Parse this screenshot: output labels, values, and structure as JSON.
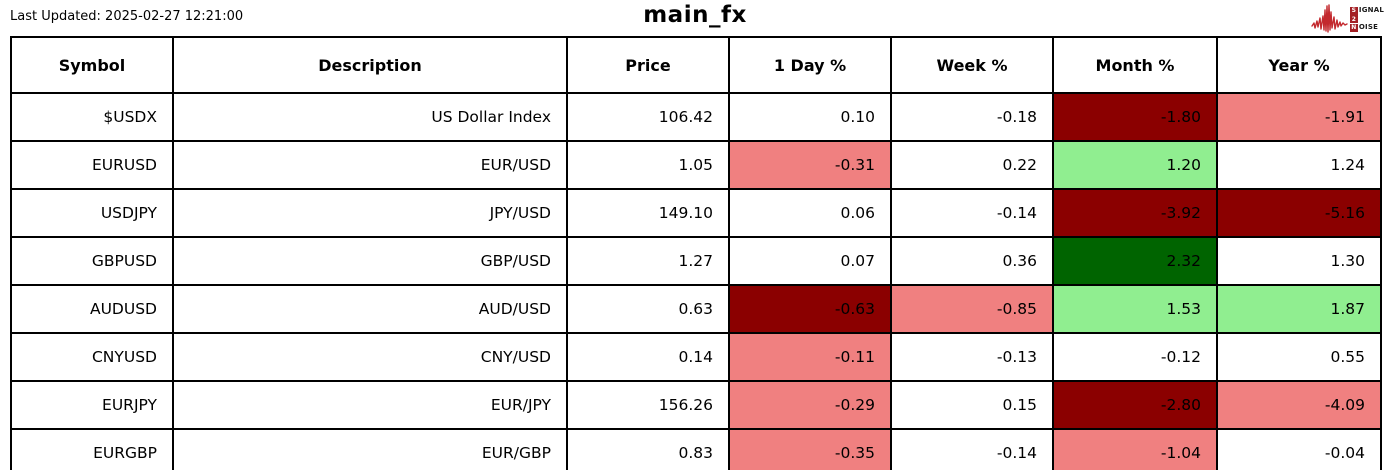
{
  "header": {
    "last_updated": "Last Updated: 2025-02-27 12:21:00",
    "title": "main_fx"
  },
  "logo": {
    "line1_boxed": "S",
    "line1_rest": "IGNAL",
    "line2_boxed": "2",
    "line2_rest": "",
    "line3_boxed": "N",
    "line3_rest": "OISE",
    "waveform_color": "#c3292e",
    "box_color": "#a31f24"
  },
  "table": {
    "headers": [
      "Symbol",
      "Description",
      "Price",
      "1 Day %",
      "Week %",
      "Month %",
      "Year %"
    ],
    "colors": {
      "white": "#ffffff",
      "darkred": "#8b0000",
      "lightcoral": "#f08080",
      "lightgreen": "#90ee90",
      "darkgreen": "#006400"
    },
    "rows": [
      {
        "symbol": "$USDX",
        "description": "US Dollar Index",
        "price": "106.42",
        "cells": [
          {
            "v": "0.10",
            "bg": "white"
          },
          {
            "v": "-0.18",
            "bg": "white"
          },
          {
            "v": "-1.80",
            "bg": "darkred"
          },
          {
            "v": "-1.91",
            "bg": "lightcoral"
          }
        ]
      },
      {
        "symbol": "EURUSD",
        "description": "EUR/USD",
        "price": "1.05",
        "cells": [
          {
            "v": "-0.31",
            "bg": "lightcoral"
          },
          {
            "v": "0.22",
            "bg": "white"
          },
          {
            "v": "1.20",
            "bg": "lightgreen"
          },
          {
            "v": "1.24",
            "bg": "white"
          }
        ]
      },
      {
        "symbol": "USDJPY",
        "description": "JPY/USD",
        "price": "149.10",
        "cells": [
          {
            "v": "0.06",
            "bg": "white"
          },
          {
            "v": "-0.14",
            "bg": "white"
          },
          {
            "v": "-3.92",
            "bg": "darkred"
          },
          {
            "v": "-5.16",
            "bg": "darkred"
          }
        ]
      },
      {
        "symbol": "GBPUSD",
        "description": "GBP/USD",
        "price": "1.27",
        "cells": [
          {
            "v": "0.07",
            "bg": "white"
          },
          {
            "v": "0.36",
            "bg": "white"
          },
          {
            "v": "2.32",
            "bg": "darkgreen"
          },
          {
            "v": "1.30",
            "bg": "white"
          }
        ]
      },
      {
        "symbol": "AUDUSD",
        "description": "AUD/USD",
        "price": "0.63",
        "cells": [
          {
            "v": "-0.63",
            "bg": "darkred"
          },
          {
            "v": "-0.85",
            "bg": "lightcoral"
          },
          {
            "v": "1.53",
            "bg": "lightgreen"
          },
          {
            "v": "1.87",
            "bg": "lightgreen"
          }
        ]
      },
      {
        "symbol": "CNYUSD",
        "description": "CNY/USD",
        "price": "0.14",
        "cells": [
          {
            "v": "-0.11",
            "bg": "lightcoral"
          },
          {
            "v": "-0.13",
            "bg": "white"
          },
          {
            "v": "-0.12",
            "bg": "white"
          },
          {
            "v": "0.55",
            "bg": "white"
          }
        ]
      },
      {
        "symbol": "EURJPY",
        "description": "EUR/JPY",
        "price": "156.26",
        "cells": [
          {
            "v": "-0.29",
            "bg": "lightcoral"
          },
          {
            "v": "0.15",
            "bg": "white"
          },
          {
            "v": "-2.80",
            "bg": "darkred"
          },
          {
            "v": "-4.09",
            "bg": "lightcoral"
          }
        ]
      },
      {
        "symbol": "EURGBP",
        "description": "EUR/GBP",
        "price": "0.83",
        "cells": [
          {
            "v": "-0.35",
            "bg": "lightcoral"
          },
          {
            "v": "-0.14",
            "bg": "white"
          },
          {
            "v": "-1.04",
            "bg": "lightcoral"
          },
          {
            "v": "-0.04",
            "bg": "white"
          }
        ]
      }
    ]
  },
  "chart_data": {
    "type": "table",
    "title": "main_fx",
    "last_updated": "2025-02-27 12:21:00",
    "columns": [
      "Symbol",
      "Description",
      "Price",
      "1 Day %",
      "Week %",
      "Month %",
      "Year %"
    ],
    "rows": [
      [
        "$USDX",
        "US Dollar Index",
        106.42,
        0.1,
        -0.18,
        -1.8,
        -1.91
      ],
      [
        "EURUSD",
        "EUR/USD",
        1.05,
        -0.31,
        0.22,
        1.2,
        1.24
      ],
      [
        "USDJPY",
        "JPY/USD",
        149.1,
        0.06,
        -0.14,
        -3.92,
        -5.16
      ],
      [
        "GBPUSD",
        "GBP/USD",
        1.27,
        0.07,
        0.36,
        2.32,
        1.3
      ],
      [
        "AUDUSD",
        "AUD/USD",
        0.63,
        -0.63,
        -0.85,
        1.53,
        1.87
      ],
      [
        "CNYUSD",
        "CNY/USD",
        0.14,
        -0.11,
        -0.13,
        -0.12,
        0.55
      ],
      [
        "EURJPY",
        "EUR/JPY",
        156.26,
        -0.29,
        0.15,
        -2.8,
        -4.09
      ],
      [
        "EURGBP",
        "EUR/GBP",
        0.83,
        -0.35,
        -0.14,
        -1.04,
        -0.04
      ]
    ]
  }
}
